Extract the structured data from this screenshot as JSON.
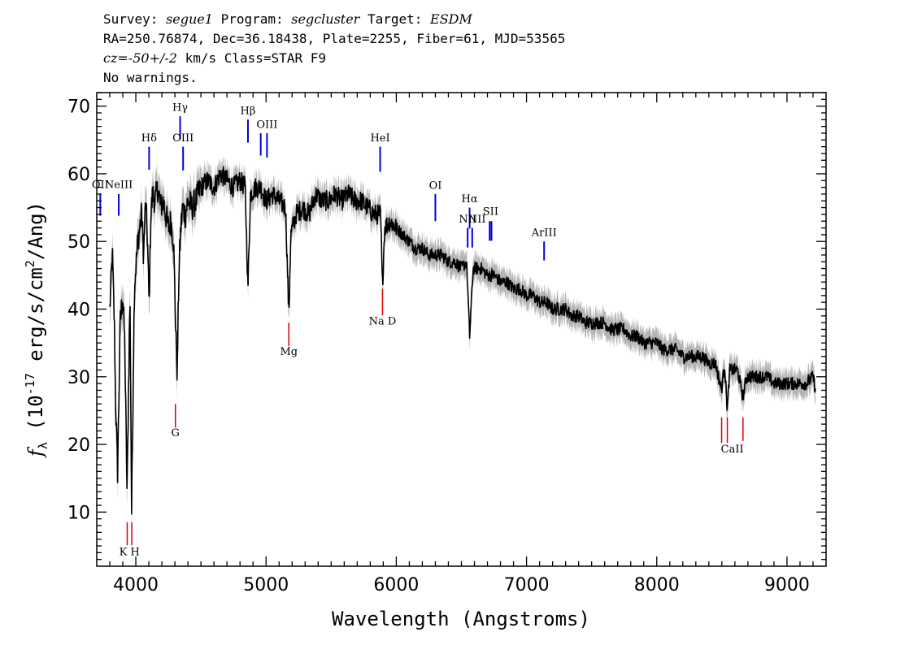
{
  "header": {
    "line1": [
      {
        "text": "Survey: ",
        "italic": false
      },
      {
        "text": "segue1",
        "italic": true
      },
      {
        "text": " Program: ",
        "italic": false
      },
      {
        "text": "segcluster",
        "italic": true
      },
      {
        "text": " Target: ",
        "italic": false
      },
      {
        "text": "ESDM",
        "italic": true
      }
    ],
    "line2": "RA=250.76874, Dec=36.18438, Plate=2255, Fiber=61, MJD=53565",
    "line3": [
      {
        "text": "cz=-50+/-2",
        "italic": true
      },
      {
        "text": " km/s Class=STAR F9",
        "italic": false
      }
    ],
    "line4": "No warnings."
  },
  "chart_data": {
    "type": "line",
    "xlabel": "Wavelength (Angstroms)",
    "ylabel": "f_λ (10^-17 erg/s/cm^2/Ang)",
    "ylabel_parts": {
      "f": "f",
      "sub": "λ",
      "pre": "(10",
      "sup": "-17",
      "mid": " erg/s/cm",
      "sup2": "2",
      "post": "/Ang)"
    },
    "xlim": [
      3700,
      9300
    ],
    "ylim": [
      2,
      72
    ],
    "xticks": [
      4000,
      5000,
      6000,
      7000,
      8000,
      9000
    ],
    "yticks": [
      10,
      20,
      30,
      40,
      50,
      60,
      70
    ],
    "colors": {
      "flux": "#000000",
      "error": "#b4b4b4",
      "emission": "#0000dd",
      "absorption": "#dd0000"
    },
    "series": [
      {
        "role": "flux",
        "points": [
          [
            3800,
            40
          ],
          [
            3820,
            48
          ],
          [
            3835,
            38
          ],
          [
            3845,
            26
          ],
          [
            3860,
            16
          ],
          [
            3880,
            38
          ],
          [
            3900,
            42
          ],
          [
            3915,
            35
          ],
          [
            3933,
            12
          ],
          [
            3945,
            30
          ],
          [
            3955,
            42
          ],
          [
            3968,
            10
          ],
          [
            3980,
            30
          ],
          [
            3990,
            44
          ],
          [
            4000,
            46
          ],
          [
            4015,
            50
          ],
          [
            4030,
            52
          ],
          [
            4045,
            54
          ],
          [
            4060,
            48
          ],
          [
            4075,
            56
          ],
          [
            4090,
            50
          ],
          [
            4102,
            40
          ],
          [
            4115,
            54
          ],
          [
            4130,
            57
          ],
          [
            4150,
            56
          ],
          [
            4170,
            58
          ],
          [
            4190,
            55
          ],
          [
            4210,
            56
          ],
          [
            4230,
            54
          ],
          [
            4250,
            52
          ],
          [
            4270,
            53
          ],
          [
            4290,
            50
          ],
          [
            4305,
            38
          ],
          [
            4318,
            30
          ],
          [
            4330,
            45
          ],
          [
            4345,
            52
          ],
          [
            4360,
            55
          ],
          [
            4380,
            54
          ],
          [
            4400,
            56
          ],
          [
            4430,
            55
          ],
          [
            4460,
            56
          ],
          [
            4500,
            58
          ],
          [
            4550,
            59
          ],
          [
            4600,
            58
          ],
          [
            4650,
            60
          ],
          [
            4700,
            59
          ],
          [
            4750,
            58
          ],
          [
            4800,
            59
          ],
          [
            4840,
            58
          ],
          [
            4861,
            43
          ],
          [
            4880,
            57
          ],
          [
            4920,
            58
          ],
          [
            4960,
            58
          ],
          [
            5000,
            56
          ],
          [
            5050,
            57
          ],
          [
            5100,
            56
          ],
          [
            5150,
            55
          ],
          [
            5175,
            39
          ],
          [
            5190,
            51
          ],
          [
            5230,
            54
          ],
          [
            5280,
            55
          ],
          [
            5330,
            54
          ],
          [
            5380,
            57
          ],
          [
            5430,
            56
          ],
          [
            5480,
            56
          ],
          [
            5530,
            57
          ],
          [
            5580,
            56
          ],
          [
            5630,
            57
          ],
          [
            5680,
            56
          ],
          [
            5730,
            56
          ],
          [
            5780,
            55
          ],
          [
            5830,
            54
          ],
          [
            5880,
            54
          ],
          [
            5893,
            43
          ],
          [
            5910,
            52
          ],
          [
            5950,
            53
          ],
          [
            6000,
            52
          ],
          [
            6050,
            51
          ],
          [
            6100,
            50
          ],
          [
            6150,
            49
          ],
          [
            6200,
            49
          ],
          [
            6250,
            48
          ],
          [
            6300,
            48
          ],
          [
            6350,
            48
          ],
          [
            6400,
            47
          ],
          [
            6450,
            47
          ],
          [
            6500,
            46
          ],
          [
            6540,
            47
          ],
          [
            6563,
            36
          ],
          [
            6590,
            46
          ],
          [
            6650,
            46
          ],
          [
            6700,
            45
          ],
          [
            6750,
            45
          ],
          [
            6800,
            44
          ],
          [
            6850,
            44
          ],
          [
            6900,
            43
          ],
          [
            6950,
            43
          ],
          [
            7000,
            42
          ],
          [
            7050,
            42
          ],
          [
            7100,
            41
          ],
          [
            7150,
            41
          ],
          [
            7200,
            40
          ],
          [
            7250,
            40
          ],
          [
            7300,
            40
          ],
          [
            7350,
            39
          ],
          [
            7400,
            39
          ],
          [
            7450,
            38
          ],
          [
            7500,
            38
          ],
          [
            7550,
            38
          ],
          [
            7600,
            38
          ],
          [
            7650,
            37
          ],
          [
            7700,
            37
          ],
          [
            7750,
            37
          ],
          [
            7800,
            36
          ],
          [
            7850,
            36
          ],
          [
            7900,
            35
          ],
          [
            7950,
            35
          ],
          [
            8000,
            35
          ],
          [
            8050,
            34
          ],
          [
            8100,
            34
          ],
          [
            8150,
            34
          ],
          [
            8200,
            33
          ],
          [
            8250,
            33
          ],
          [
            8300,
            33
          ],
          [
            8350,
            33
          ],
          [
            8400,
            32
          ],
          [
            8450,
            32
          ],
          [
            8498,
            28
          ],
          [
            8520,
            32
          ],
          [
            8542,
            25
          ],
          [
            8560,
            31
          ],
          [
            8620,
            31
          ],
          [
            8662,
            27
          ],
          [
            8690,
            30
          ],
          [
            8750,
            30
          ],
          [
            8800,
            30
          ],
          [
            8850,
            30
          ],
          [
            8900,
            29
          ],
          [
            8950,
            29
          ],
          [
            9000,
            29
          ],
          [
            9050,
            29
          ],
          [
            9100,
            29
          ],
          [
            9150,
            29
          ],
          [
            9200,
            30
          ],
          [
            9220,
            28
          ]
        ]
      }
    ],
    "emission_lines": [
      {
        "label": "OII",
        "x": 3727,
        "y1": 53.8,
        "y2": 57
      },
      {
        "label": "NeIII",
        "x": 3869,
        "y1": 53.8,
        "y2": 57
      },
      {
        "label": "Hδ",
        "x": 4102,
        "y1": 60.6,
        "y2": 64
      },
      {
        "label": "Hγ",
        "x": 4340,
        "y1": 65.1,
        "y2": 68.5
      },
      {
        "label": "OIII",
        "x": 4363,
        "y1": 60.5,
        "y2": 64
      },
      {
        "label": "Hβ",
        "x": 4861,
        "y1": 64.6,
        "y2": 68
      },
      {
        "label": "OIII",
        "x": 4959,
        "y1": 62.7,
        "y2": 66
      },
      {
        "label": "OIII",
        "x": 5007,
        "y1": 62.4,
        "y2": 66
      },
      {
        "label": "HeI",
        "x": 5876,
        "y1": 60.3,
        "y2": 64
      },
      {
        "label": "OI",
        "x": 6300,
        "y1": 53.0,
        "y2": 57
      },
      {
        "label": "NII",
        "x": 6548,
        "y1": 49.1,
        "y2": 52
      },
      {
        "label": "Hα",
        "x": 6563,
        "y1": 51.9,
        "y2": 55
      },
      {
        "label": "NII",
        "x": 6583,
        "y1": 49.1,
        "y2": 52
      },
      {
        "label": "SII",
        "x": 6717,
        "y1": 50.1,
        "y2": 53
      },
      {
        "label": "SII",
        "x": 6731,
        "y1": 50.1,
        "y2": 53
      },
      {
        "label": "ArIII",
        "x": 7135,
        "y1": 47.2,
        "y2": 50
      }
    ],
    "absorption_lines": [
      {
        "label": "K",
        "x": 3934,
        "y1": 5.1,
        "y2": 8.5
      },
      {
        "label": "H",
        "x": 3969,
        "y1": 5.1,
        "y2": 8.5
      },
      {
        "label": "G",
        "x": 4304,
        "y1": 22.5,
        "y2": 26
      },
      {
        "label": "Mg",
        "x": 5175,
        "y1": 34.5,
        "y2": 38
      },
      {
        "label": "Na D",
        "x": 5894,
        "y1": 39.1,
        "y2": 43
      },
      {
        "label": "CaII",
        "x": 8498,
        "y1": 20.2,
        "y2": 24
      },
      {
        "label": "CaII",
        "x": 8542,
        "y1": 20.2,
        "y2": 24
      },
      {
        "label": "CaII",
        "x": 8662,
        "y1": 20.5,
        "y2": 24
      }
    ],
    "label_groups": {
      "absorption": [
        {
          "text": "K H",
          "x": 3951,
          "y": 3.6
        },
        {
          "text": "G",
          "x": 4304,
          "y": 21.2
        },
        {
          "text": "Mg",
          "x": 5175,
          "y": 33.2
        },
        {
          "text": "Na  D",
          "x": 5894,
          "y": 37.7
        },
        {
          "text": "CaII",
          "x": 8580,
          "y": 18.8
        }
      ]
    }
  }
}
